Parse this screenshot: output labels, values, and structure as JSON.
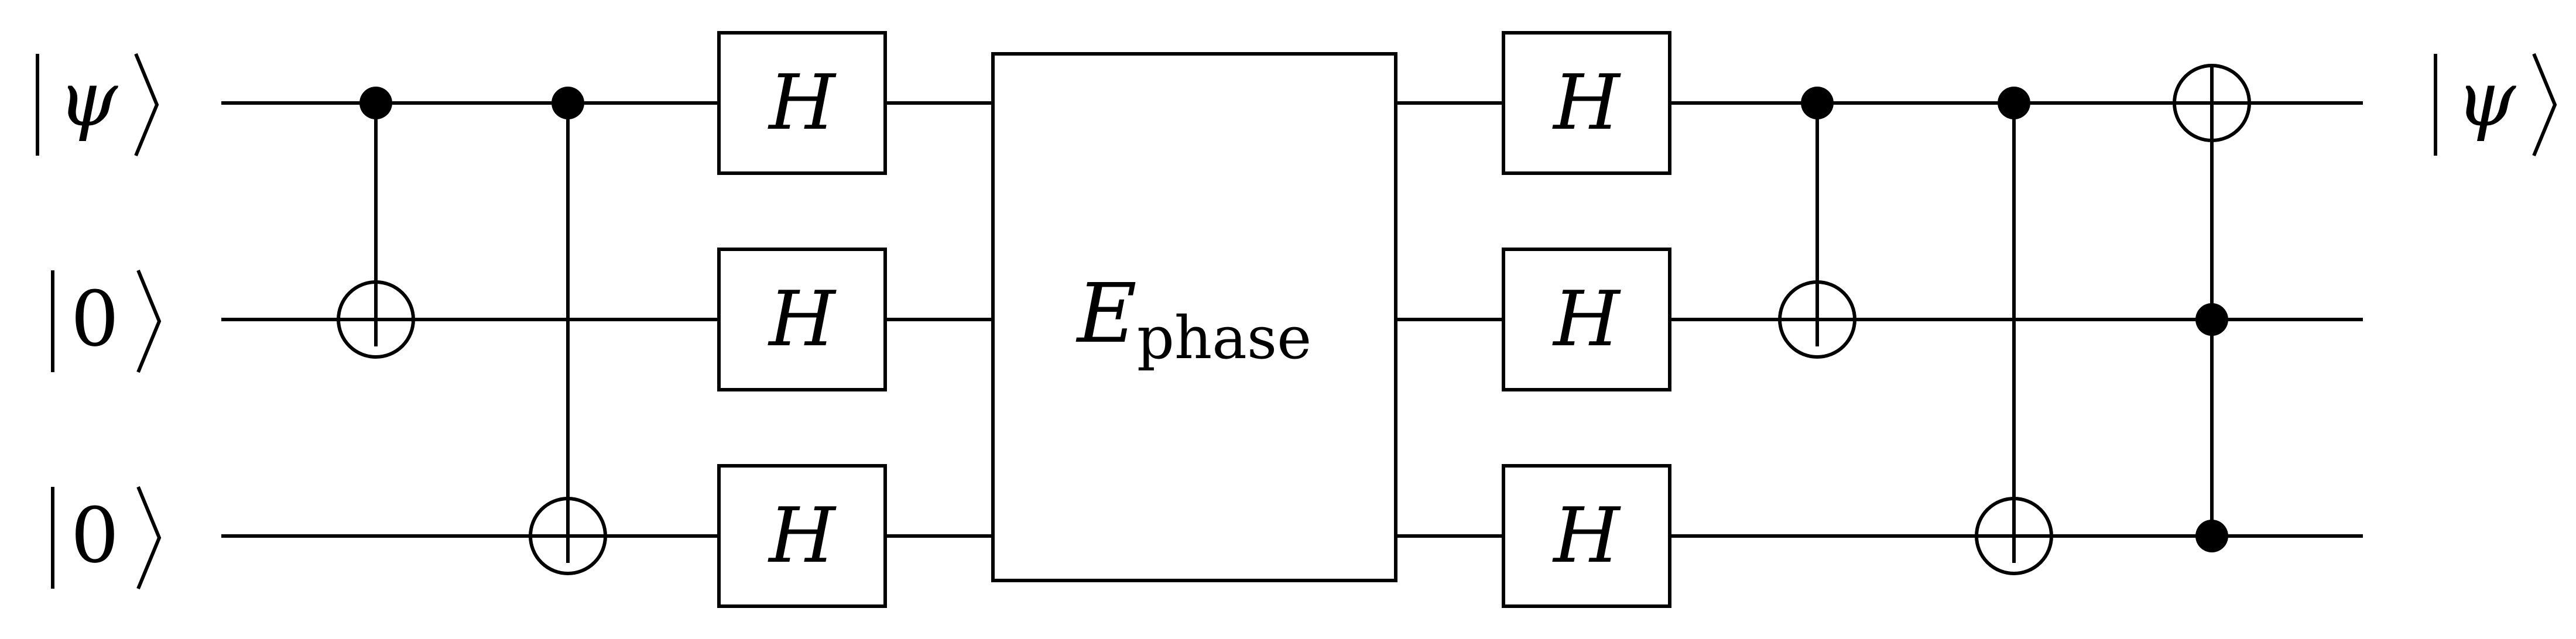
{
  "diagram": {
    "input_labels": {
      "q0": "ψ",
      "q1": "0",
      "q2": "0"
    },
    "output_labels": {
      "q0": "ψ"
    },
    "hadamard_label": "H",
    "phase_box": {
      "main": "E",
      "subscript": "phase"
    }
  },
  "colors": {
    "ink": "#000000",
    "background": "#ffffff"
  }
}
